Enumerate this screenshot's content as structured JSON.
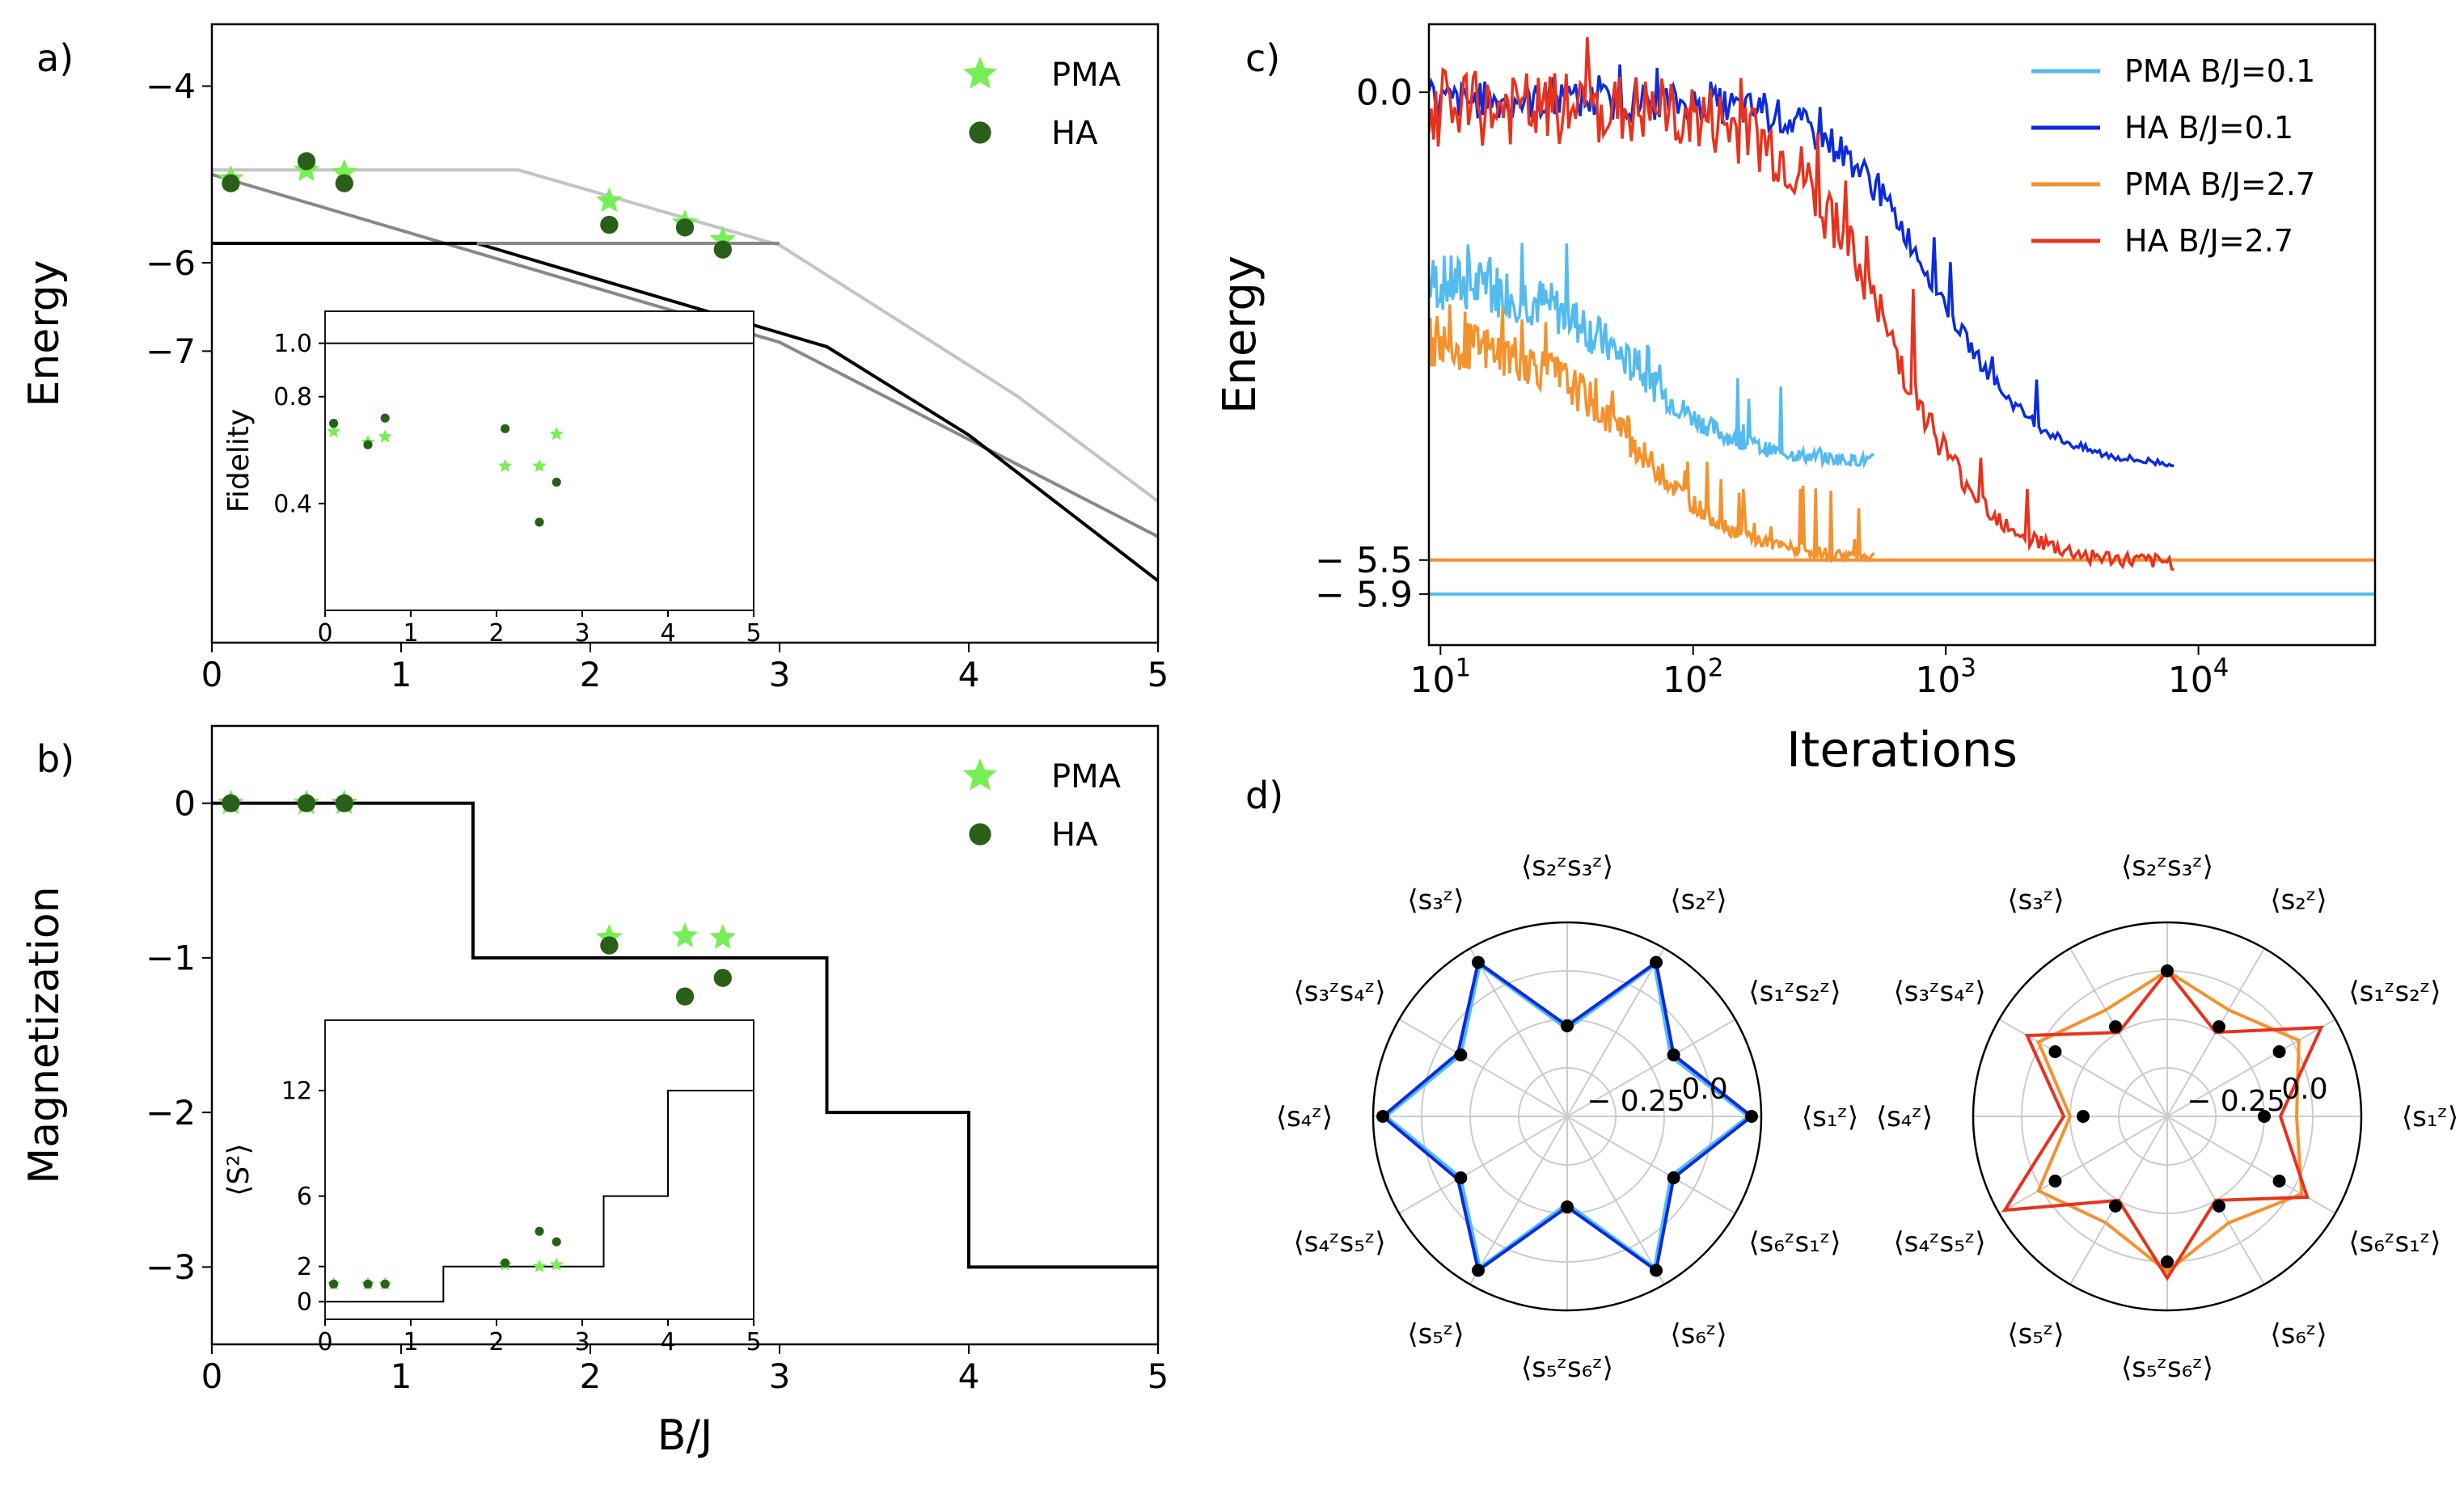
{
  "colors": {
    "pma": "#77ee55",
    "ha": "#2a5f1a",
    "light_blue": "#55bbee",
    "blue": "#0b2bdd",
    "orange": "#f4922e",
    "red": "#e8321e",
    "gray_light": "#c4c4c4",
    "gray_mid": "#888888",
    "black": "#000000",
    "grid": "#cccccc"
  },
  "chart_data": [
    {
      "panel": "a)",
      "type": "line",
      "xlabel": "",
      "ylabel": "Energy",
      "xlim": [
        0,
        5
      ],
      "ylim": [
        -10.3,
        -3.3
      ],
      "xticks": [
        "0",
        "1",
        "2",
        "3",
        "4",
        "5"
      ],
      "yticks": [
        {
          "v": -4,
          "t": "−4"
        },
        {
          "v": -6,
          "t": "−6"
        },
        {
          "v": -7,
          "t": "−7"
        }
      ],
      "lines": [
        {
          "name": "level-light",
          "color": "gray_light",
          "points": [
            [
              0,
              -4.95
            ],
            [
              1.62,
              -4.95
            ],
            [
              3.0,
              -5.8
            ],
            [
              4.25,
              -7.5
            ],
            [
              5,
              -8.7
            ]
          ]
        },
        {
          "name": "level-mid",
          "color": "gray_mid",
          "points": [
            [
              0,
              -5.0
            ],
            [
              3.0,
              -6.9
            ],
            [
              5,
              -9.1
            ]
          ]
        },
        {
          "name": "level-dark",
          "color": "black",
          "points": [
            [
              0,
              -5.78
            ],
            [
              1.4,
              -5.78
            ],
            [
              3.25,
              -6.95
            ],
            [
              4.0,
              -7.95
            ],
            [
              5,
              -9.6
            ]
          ]
        },
        {
          "name": "level-flat",
          "color": "gray_mid",
          "points": [
            [
              1.4,
              -5.78
            ],
            [
              3.0,
              -5.78
            ]
          ]
        }
      ],
      "series": [
        {
          "name": "PMA",
          "marker": "star",
          "color": "pma",
          "x": [
            0.1,
            0.5,
            0.7,
            2.1,
            2.5,
            2.7
          ],
          "y": [
            -5.05,
            -4.95,
            -4.98,
            -5.3,
            -5.55,
            -5.74
          ]
        },
        {
          "name": "HA",
          "marker": "circle",
          "color": "ha",
          "x": [
            0.1,
            0.5,
            0.7,
            2.1,
            2.5,
            2.7
          ],
          "y": [
            -5.1,
            -4.85,
            -5.1,
            -5.57,
            -5.6,
            -5.85
          ]
        }
      ],
      "legend": [
        {
          "label": "PMA",
          "marker": "star",
          "color": "pma"
        },
        {
          "label": "HA",
          "marker": "circle",
          "color": "ha"
        }
      ],
      "legend_location": "top-right",
      "inset": {
        "ylabel": "Fidelity",
        "xlim": [
          0,
          5
        ],
        "ylim": [
          0.0,
          1.12
        ],
        "xticks": [
          "0",
          "1",
          "2",
          "3",
          "4",
          "5"
        ],
        "yticks": [
          {
            "v": 1.0,
            "t": "1.0"
          },
          {
            "v": 0.8,
            "t": "0.8"
          },
          {
            "v": 0.4,
            "t": "0.4"
          }
        ],
        "hline": 1.0,
        "series": [
          {
            "name": "PMA",
            "marker": "star",
            "color": "pma",
            "x": [
              0.1,
              0.5,
              0.7,
              2.1,
              2.5,
              2.7
            ],
            "y": [
              0.67,
              0.63,
              0.65,
              0.54,
              0.54,
              0.66
            ]
          },
          {
            "name": "HA",
            "marker": "circle",
            "color": "ha",
            "x": [
              0.1,
              0.5,
              0.7,
              2.1,
              2.5,
              2.7
            ],
            "y": [
              0.7,
              0.62,
              0.72,
              0.68,
              0.33,
              0.48
            ]
          }
        ]
      }
    },
    {
      "panel": "b)",
      "type": "line",
      "xlabel": "B/J",
      "ylabel": "Magnetization",
      "xlim": [
        0,
        5
      ],
      "ylim": [
        -3.5,
        0.5
      ],
      "xticks": [
        "0",
        "1",
        "2",
        "3",
        "4",
        "5"
      ],
      "yticks": [
        {
          "v": 0,
          "t": "0"
        },
        {
          "v": -1,
          "t": "−1"
        },
        {
          "v": -2,
          "t": "−2"
        },
        {
          "v": -3,
          "t": "−3"
        }
      ],
      "lines": [
        {
          "name": "step-magnetization",
          "color": "black",
          "points": [
            [
              0,
              0
            ],
            [
              1.38,
              0
            ],
            [
              1.38,
              -1
            ],
            [
              3.25,
              -1
            ],
            [
              3.25,
              -2
            ],
            [
              4.0,
              -2
            ],
            [
              4.0,
              -3
            ],
            [
              5,
              -3
            ]
          ]
        }
      ],
      "series": [
        {
          "name": "PMA",
          "marker": "star",
          "color": "pma",
          "x": [
            0.1,
            0.5,
            0.7,
            2.1,
            2.5,
            2.7
          ],
          "y": [
            0.0,
            0.0,
            0.0,
            -0.87,
            -0.86,
            -0.87
          ]
        },
        {
          "name": "HA",
          "marker": "circle",
          "color": "ha",
          "x": [
            0.1,
            0.5,
            0.7,
            2.1,
            2.5,
            2.7
          ],
          "y": [
            0.0,
            0.0,
            0.0,
            -0.92,
            -1.25,
            -1.13
          ]
        }
      ],
      "legend": [
        {
          "label": "PMA",
          "marker": "star",
          "color": "pma"
        },
        {
          "label": "HA",
          "marker": "circle",
          "color": "ha"
        }
      ],
      "legend_location": "top-right",
      "inset": {
        "ylabel": "⟨S²⟩",
        "xlim": [
          0,
          5
        ],
        "ylim": [
          -1,
          16
        ],
        "xticks": [
          "0",
          "1",
          "2",
          "3",
          "4",
          "5"
        ],
        "yticks": [
          {
            "v": 12,
            "t": "12"
          },
          {
            "v": 6,
            "t": "6"
          },
          {
            "v": 2,
            "t": "2"
          },
          {
            "v": 0,
            "t": "0"
          }
        ],
        "step": [
          [
            0,
            0
          ],
          [
            1.38,
            0
          ],
          [
            1.38,
            2
          ],
          [
            3.25,
            2
          ],
          [
            3.25,
            6
          ],
          [
            4.0,
            6
          ],
          [
            4.0,
            12
          ],
          [
            5,
            12
          ]
        ],
        "series": [
          {
            "name": "PMA",
            "marker": "star",
            "color": "pma",
            "x": [
              0.1,
              0.5,
              0.7,
              2.1,
              2.5,
              2.7
            ],
            "y": [
              1.0,
              1.0,
              1.0,
              2.1,
              2.0,
              2.1
            ]
          },
          {
            "name": "HA",
            "marker": "circle",
            "color": "ha",
            "x": [
              0.1,
              0.5,
              0.7,
              2.1,
              2.5,
              2.7
            ],
            "y": [
              1.0,
              1.0,
              1.0,
              2.2,
              4.0,
              3.4
            ]
          }
        ]
      }
    },
    {
      "panel": "c)",
      "type": "line",
      "xlabel": "Iterations",
      "ylabel": "Energy",
      "xscale": "log",
      "xlim": [
        9,
        50000
      ],
      "ylim": [
        -6.5,
        0.8
      ],
      "xticks": [
        {
          "v": 10,
          "t": "10",
          "e": "1"
        },
        {
          "v": 100,
          "t": "10",
          "e": "2"
        },
        {
          "v": 1000,
          "t": "10",
          "e": "3"
        },
        {
          "v": 10000,
          "t": "10",
          "e": "4"
        }
      ],
      "yticks": [
        {
          "v": 0.0,
          "t": "0.0"
        },
        {
          "v": -5.5,
          "t": "− 5.5"
        },
        {
          "v": -5.9,
          "t": "− 5.9"
        }
      ],
      "hlines": [
        {
          "y": -5.5,
          "color": "orange"
        },
        {
          "y": -5.9,
          "color": "light_blue"
        }
      ],
      "series": [
        {
          "name": "PMA B/J=0.1",
          "color": "light_blue",
          "start": -2.2,
          "end": -4.35,
          "max_iter": 520,
          "drop_at": 60,
          "noise": 0.35
        },
        {
          "name": "HA B/J=0.1",
          "color": "blue",
          "start": -0.1,
          "end": -4.4,
          "max_iter": 8000,
          "drop_at": 900,
          "noise": 0.22
        },
        {
          "name": "PMA B/J=2.7",
          "color": "orange",
          "start": -2.9,
          "end": -5.48,
          "max_iter": 520,
          "drop_at": 60,
          "noise": 0.3
        },
        {
          "name": "HA B/J=2.7",
          "color": "red",
          "start": -0.2,
          "end": -5.55,
          "max_iter": 8000,
          "drop_at": 600,
          "noise": 0.45
        }
      ],
      "legend_location": "top-right"
    },
    {
      "panel": "d)",
      "type": "radar",
      "axes": [
        "⟨s₁ᶻ⟩",
        "⟨s₁ᶻs₂ᶻ⟩",
        "⟨s₂ᶻ⟩",
        "⟨s₂ᶻs₃ᶻ⟩",
        "⟨s₃ᶻ⟩",
        "⟨s₃ᶻs₄ᶻ⟩",
        "⟨s₄ᶻ⟩",
        "⟨s₄ᶻs₅ᶻ⟩",
        "⟨s₅ᶻ⟩",
        "⟨s₅ᶻs₆ᶻ⟩",
        "⟨s₆ᶻ⟩",
        "⟨s₆ᶻs₁ᶻ⟩"
      ],
      "rlim": [
        -0.5,
        0.1
      ],
      "rtick_labels": [
        {
          "v": -0.25,
          "t": "− 0.25"
        },
        {
          "v": 0.0,
          "t": "0.0"
        }
      ],
      "charts": [
        {
          "name": "radar-left",
          "series": [
            {
              "name": "PMA B/J=0.1",
              "color": "light_blue",
              "values": [
                0.06,
                -0.13,
                0.04,
                -0.23,
                0.04,
                -0.12,
                0.06,
                -0.12,
                0.04,
                -0.23,
                0.04,
                -0.13
              ]
            },
            {
              "name": "HA B/J=0.1",
              "color": "blue",
              "values": [
                0.07,
                -0.12,
                0.05,
                -0.22,
                0.05,
                -0.11,
                0.07,
                -0.11,
                0.05,
                -0.22,
                0.05,
                -0.12
              ]
            },
            {
              "name": "exact",
              "color": "black",
              "values": [
                0.07,
                -0.12,
                0.05,
                -0.22,
                0.05,
                -0.12,
                0.07,
                -0.12,
                0.05,
                -0.22,
                0.05,
                -0.12
              ]
            }
          ]
        },
        {
          "name": "radar-right",
          "series": [
            {
              "name": "PMA B/J=2.7",
              "color": "orange",
              "values": [
                -0.1,
                -0.03,
                -0.12,
                -0.05,
                -0.12,
                -0.04,
                -0.2,
                -0.04,
                -0.12,
                -0.02,
                -0.12,
                -0.02
              ]
            },
            {
              "name": "HA B/J=2.7",
              "color": "red",
              "values": [
                -0.15,
                0.05,
                -0.2,
                -0.05,
                -0.2,
                0.0,
                -0.18,
                0.08,
                -0.2,
                0.0,
                -0.2,
                0.0
              ]
            },
            {
              "name": "exact",
              "color": "black",
              "values": [
                -0.2,
                -0.1,
                -0.18,
                -0.05,
                -0.18,
                -0.1,
                -0.24,
                -0.1,
                -0.18,
                -0.05,
                -0.18,
                -0.1
              ]
            }
          ]
        }
      ]
    }
  ]
}
